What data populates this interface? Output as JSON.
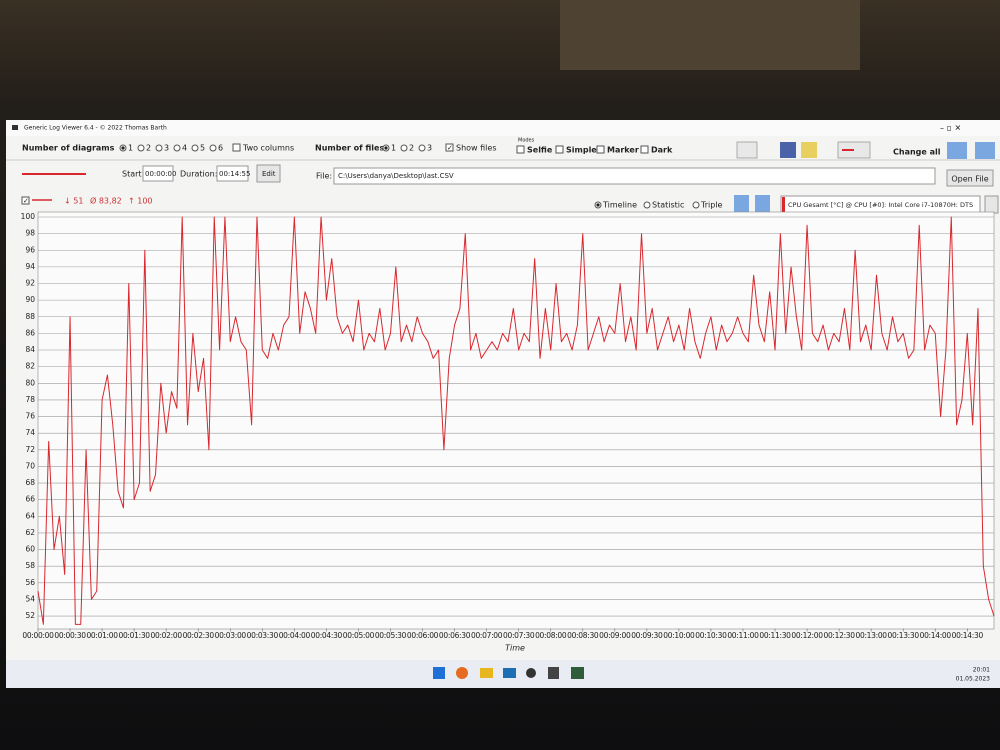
{
  "window": {
    "title": "Generic Log Viewer 6.4 - © 2022 Thomas Barth"
  },
  "toolbar": {
    "diagrams_label": "Number of diagrams",
    "diagram_options": [
      "1",
      "2",
      "3",
      "4",
      "5",
      "6"
    ],
    "two_columns": "Two columns",
    "files_label": "Number of files",
    "file_options": [
      "1",
      "2",
      "3"
    ],
    "show_files": "Show files",
    "modes_label": "Modes",
    "modes": [
      "Selfie",
      "Simple",
      "Marker",
      "Dark"
    ],
    "change_all": "Change all"
  },
  "file_bar": {
    "start_label": "Start:",
    "start": "00:00:00",
    "duration_label": "Duration:",
    "duration": "00:14:55",
    "edit": "Edit",
    "file_label": "File:",
    "file_path": "C:\\Users\\danya\\Desktop\\last.CSV",
    "open_file": "Open File"
  },
  "stats": {
    "min": "↓ 51",
    "avg": "Ø 83,82",
    "max": "↑ 100"
  },
  "views": [
    "Timeline",
    "Statistic",
    "Triple"
  ],
  "chart_data": {
    "type": "line",
    "x_label": "Time",
    "x": [
      0,
      5,
      10,
      15,
      20,
      25,
      30,
      35,
      40,
      45,
      50,
      55,
      60,
      65,
      70,
      75,
      80,
      85,
      90,
      95,
      100,
      105,
      110,
      115,
      120,
      125,
      130,
      135,
      140,
      145,
      150,
      155,
      160,
      165,
      170,
      175,
      180,
      185,
      190,
      195,
      200,
      205,
      210,
      215,
      220,
      225,
      230,
      235,
      240,
      245,
      250,
      255,
      260,
      265,
      270,
      275,
      280,
      285,
      290,
      295,
      300,
      305,
      310,
      315,
      320,
      325,
      330,
      335,
      340,
      345,
      350,
      355,
      360,
      365,
      370,
      375,
      380,
      385,
      390,
      395,
      400,
      405,
      410,
      415,
      420,
      425,
      430,
      435,
      440,
      445,
      450,
      455,
      460,
      465,
      470,
      475,
      480,
      485,
      490,
      495,
      500,
      505,
      510,
      515,
      520,
      525,
      530,
      535,
      540,
      545,
      550,
      555,
      560,
      565,
      570,
      575,
      580,
      585,
      590,
      595,
      600,
      605,
      610,
      615,
      620,
      625,
      630,
      635,
      640,
      645,
      650,
      655,
      660,
      665,
      670,
      675,
      680,
      685,
      690,
      695,
      700,
      705,
      710,
      715,
      720,
      725,
      730,
      735,
      740,
      745,
      750,
      755,
      760,
      765,
      770,
      775,
      780,
      785,
      790,
      795,
      800,
      805,
      810,
      815,
      820,
      825,
      830,
      835,
      840,
      845,
      850,
      855,
      860,
      865,
      870,
      875,
      880,
      885,
      890,
      895
    ],
    "series": [
      {
        "name": "CPU Gesamt [°C] @ CPU [#0]: Intel Core i7-10870H: DTS",
        "color": "#d8282e",
        "values": [
          55,
          51,
          73,
          60,
          64,
          57,
          88,
          51,
          51,
          72,
          54,
          55,
          78,
          81,
          75,
          67,
          65,
          92,
          66,
          68,
          96,
          67,
          69,
          80,
          74,
          79,
          77,
          100,
          75,
          86,
          79,
          83,
          72,
          100,
          84,
          100,
          85,
          88,
          85,
          84,
          75,
          100,
          84,
          83,
          86,
          84,
          87,
          88,
          100,
          86,
          91,
          89,
          86,
          100,
          90,
          95,
          88,
          86,
          87,
          85,
          90,
          84,
          86,
          85,
          89,
          84,
          86,
          94,
          85,
          87,
          85,
          88,
          86,
          85,
          83,
          84,
          72,
          83,
          87,
          89,
          98,
          84,
          86,
          83,
          84,
          85,
          84,
          86,
          85,
          89,
          84,
          86,
          85,
          95,
          83,
          89,
          84,
          92,
          85,
          86,
          84,
          87,
          98,
          84,
          86,
          88,
          85,
          87,
          86,
          92,
          85,
          88,
          84,
          98,
          86,
          89,
          84,
          86,
          88,
          85,
          87,
          84,
          89,
          85,
          83,
          86,
          88,
          84,
          87,
          85,
          86,
          88,
          86,
          85,
          93,
          87,
          85,
          91,
          84,
          98,
          86,
          94,
          88,
          84,
          99,
          86,
          85,
          87,
          84,
          86,
          85,
          89,
          84,
          96,
          85,
          87,
          84,
          93,
          86,
          84,
          88,
          85,
          86,
          83,
          84,
          99,
          84,
          87,
          86,
          76,
          84,
          100,
          75,
          78,
          86,
          75,
          89,
          58,
          54,
          52
        ]
      }
    ],
    "xlim": [
      0,
      895
    ],
    "xticks": [
      {
        "value": 0,
        "label": "00:00:00"
      },
      {
        "value": 30,
        "label": "00:00:30"
      },
      {
        "value": 60,
        "label": "00:01:00"
      },
      {
        "value": 90,
        "label": "00:01:30"
      },
      {
        "value": 120,
        "label": "00:02:00"
      },
      {
        "value": 150,
        "label": "00:02:30"
      },
      {
        "value": 180,
        "label": "00:03:00"
      },
      {
        "value": 210,
        "label": "00:03:30"
      },
      {
        "value": 240,
        "label": "00:04:00"
      },
      {
        "value": 270,
        "label": "00:04:30"
      },
      {
        "value": 300,
        "label": "00:05:00"
      },
      {
        "value": 330,
        "label": "00:05:30"
      },
      {
        "value": 360,
        "label": "00:06:00"
      },
      {
        "value": 390,
        "label": "00:06:30"
      },
      {
        "value": 420,
        "label": "00:07:00"
      },
      {
        "value": 450,
        "label": "00:07:30"
      },
      {
        "value": 480,
        "label": "00:08:00"
      },
      {
        "value": 510,
        "label": "00:08:30"
      },
      {
        "value": 540,
        "label": "00:09:00"
      },
      {
        "value": 570,
        "label": "00:09:30"
      },
      {
        "value": 600,
        "label": "00:10:00"
      },
      {
        "value": 630,
        "label": "00:10:30"
      },
      {
        "value": 660,
        "label": "00:11:00"
      },
      {
        "value": 690,
        "label": "00:11:30"
      },
      {
        "value": 720,
        "label": "00:12:00"
      },
      {
        "value": 750,
        "label": "00:12:30"
      },
      {
        "value": 780,
        "label": "00:13:00"
      },
      {
        "value": 810,
        "label": "00:13:30"
      },
      {
        "value": 840,
        "label": "00:14:00"
      },
      {
        "value": 870,
        "label": "00:14:30"
      }
    ],
    "ylim": [
      50.5,
      100
    ],
    "yticks": [
      52,
      54,
      56,
      58,
      60,
      62,
      64,
      66,
      68,
      70,
      72,
      74,
      76,
      78,
      80,
      82,
      84,
      86,
      88,
      90,
      92,
      94,
      96,
      98,
      100
    ],
    "grid": true
  },
  "taskbar": {
    "time": "20:01",
    "date": "01.05.2023"
  }
}
